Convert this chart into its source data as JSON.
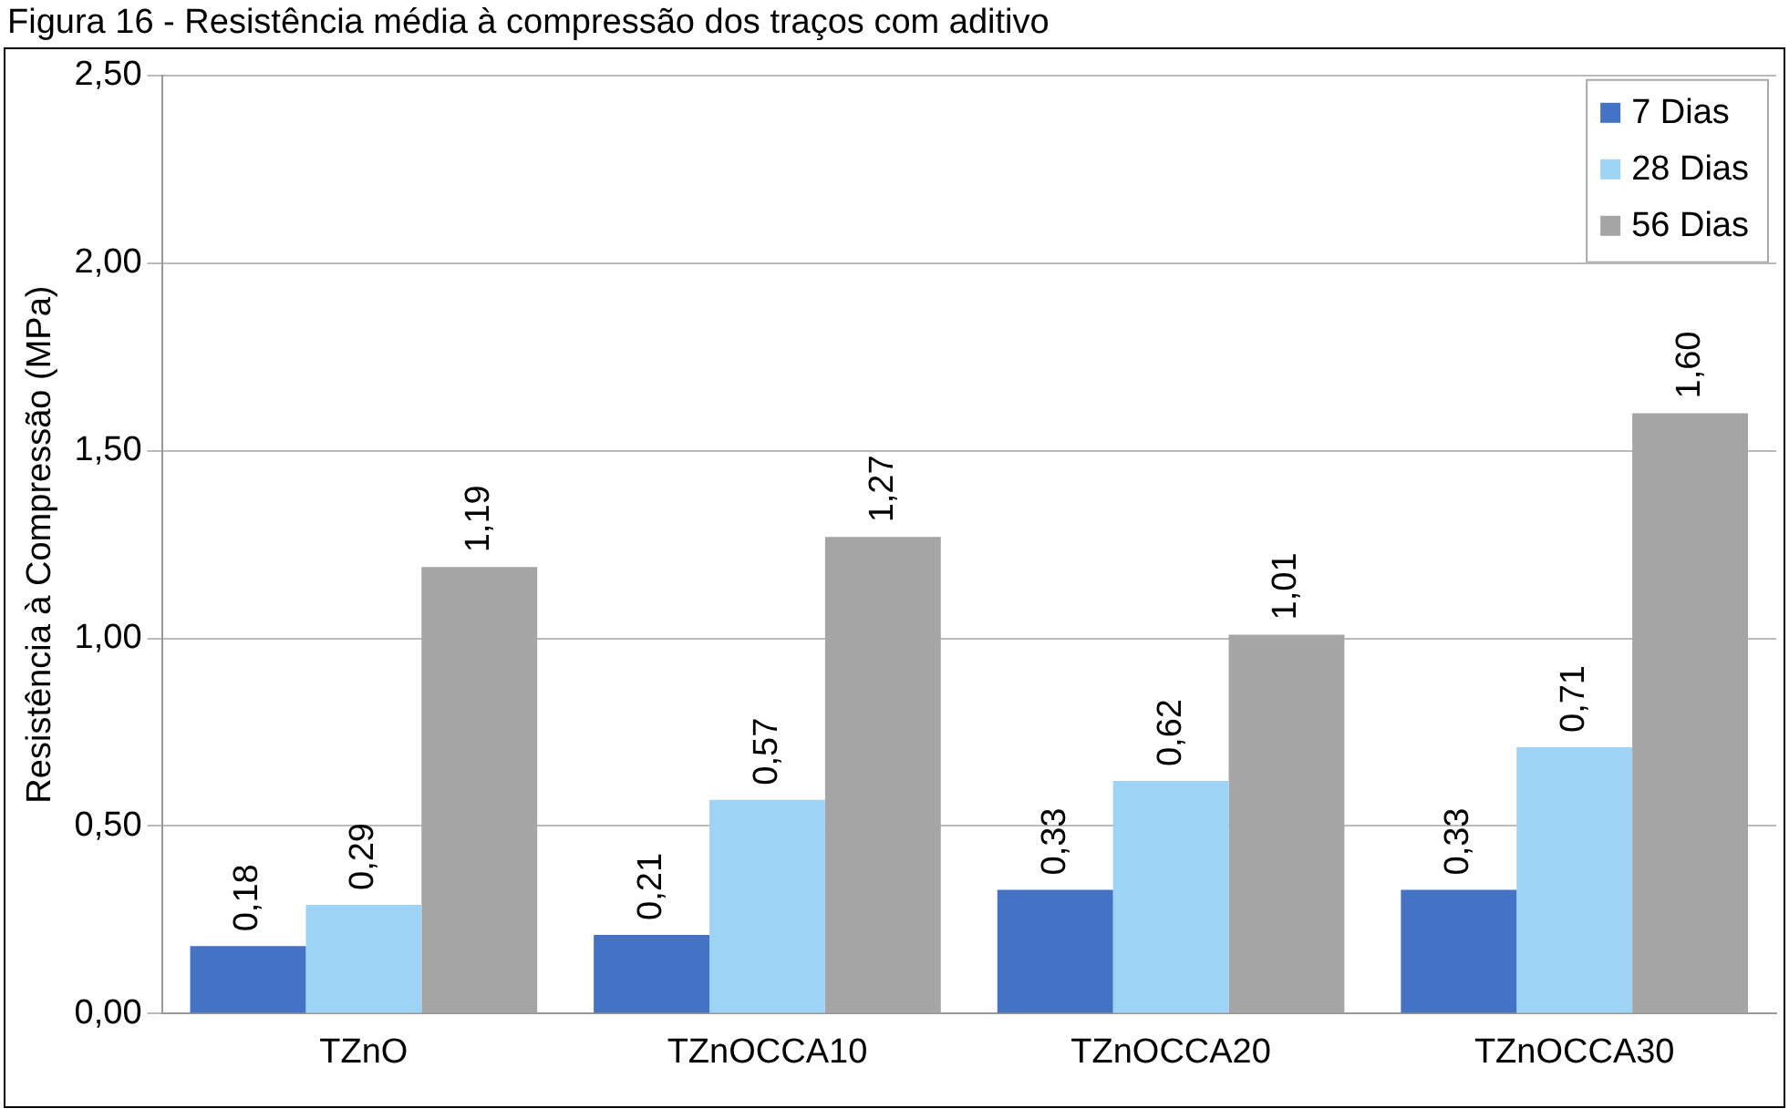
{
  "chart_data": {
    "type": "bar",
    "title": "Figura 16 - Resistência média à compressão dos traços com aditivo",
    "ylabel": "Resistência à Compressão (MPa)",
    "categories": [
      "TZnO",
      "TZnOCCA10",
      "TZnOCCA20",
      "TZnOCCA30"
    ],
    "series": [
      {
        "name": "7 Dias",
        "color": "#4472c4",
        "values": [
          0.18,
          0.21,
          0.33,
          0.33
        ],
        "value_labels": [
          "0,18",
          "0,21",
          "0,33",
          "0,33"
        ]
      },
      {
        "name": "28 Dias",
        "color": "#9dd3f5",
        "values": [
          0.29,
          0.57,
          0.62,
          0.71
        ],
        "value_labels": [
          "0,29",
          "0,57",
          "0,62",
          "0,71"
        ]
      },
      {
        "name": "56 Dias",
        "color": "#a5a5a5",
        "values": [
          1.19,
          1.27,
          1.01,
          1.6
        ],
        "value_labels": [
          "1,19",
          "1,27",
          "1,01",
          "1,60"
        ]
      }
    ],
    "ylim": [
      0,
      2.5
    ],
    "yticks": [
      {
        "value": 0,
        "label": "0,00"
      },
      {
        "value": 0.5,
        "label": "0,50"
      },
      {
        "value": 1,
        "label": "1,00"
      },
      {
        "value": 1.5,
        "label": "1,50"
      },
      {
        "value": 2,
        "label": "2,00"
      },
      {
        "value": 2.5,
        "label": "2,50"
      }
    ],
    "grid": "y",
    "legend": "top right"
  }
}
